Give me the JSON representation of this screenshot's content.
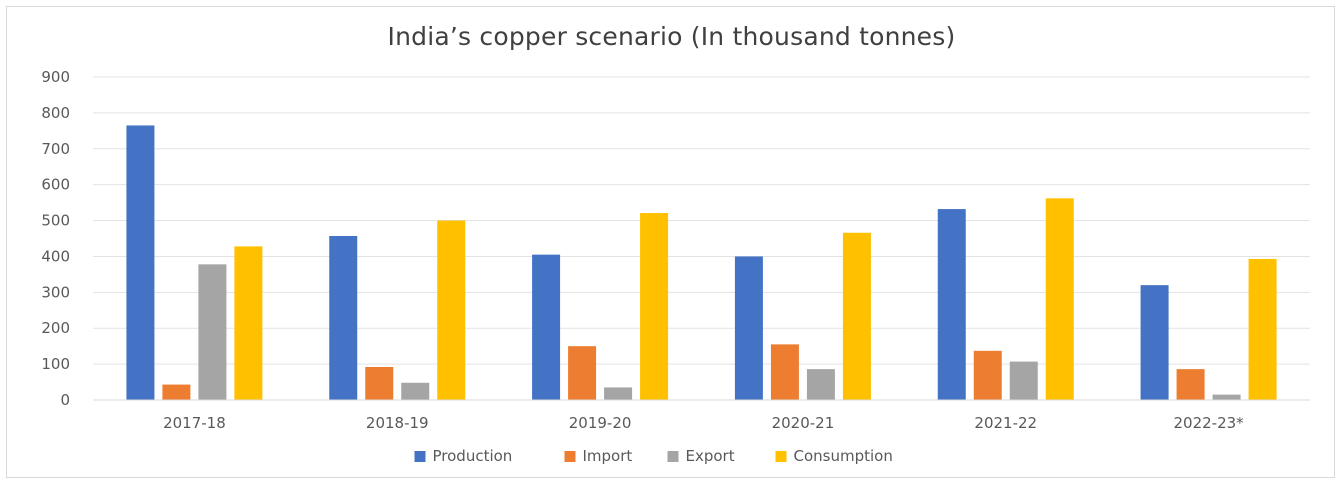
{
  "chart_data": {
    "type": "bar",
    "title": "India’s copper scenario (In thousand tonnes)",
    "xlabel": "",
    "ylabel": "",
    "categories": [
      "2017-18",
      "2018-19",
      "2019-20",
      "2020-21",
      "2021-22",
      "2022-23*"
    ],
    "series": [
      {
        "name": "Production",
        "color": "#4472c4",
        "values": [
          765,
          457,
          405,
          400,
          532,
          320
        ]
      },
      {
        "name": "Import",
        "color": "#ed7d31",
        "values": [
          43,
          92,
          150,
          155,
          137,
          86
        ]
      },
      {
        "name": "Export",
        "color": "#a5a5a5",
        "values": [
          378,
          48,
          35,
          86,
          107,
          15
        ]
      },
      {
        "name": "Consumption",
        "color": "#ffc000",
        "values": [
          428,
          500,
          521,
          466,
          562,
          393
        ]
      }
    ],
    "ylim": [
      0,
      900
    ],
    "yticks": [
      0,
      100,
      200,
      300,
      400,
      500,
      600,
      700,
      800,
      900
    ],
    "ytick_labels": [
      "0",
      "100",
      "200",
      "300",
      "400",
      "500",
      "600",
      "700",
      "800",
      "900"
    ],
    "grid": true,
    "legend_position": "bottom"
  }
}
